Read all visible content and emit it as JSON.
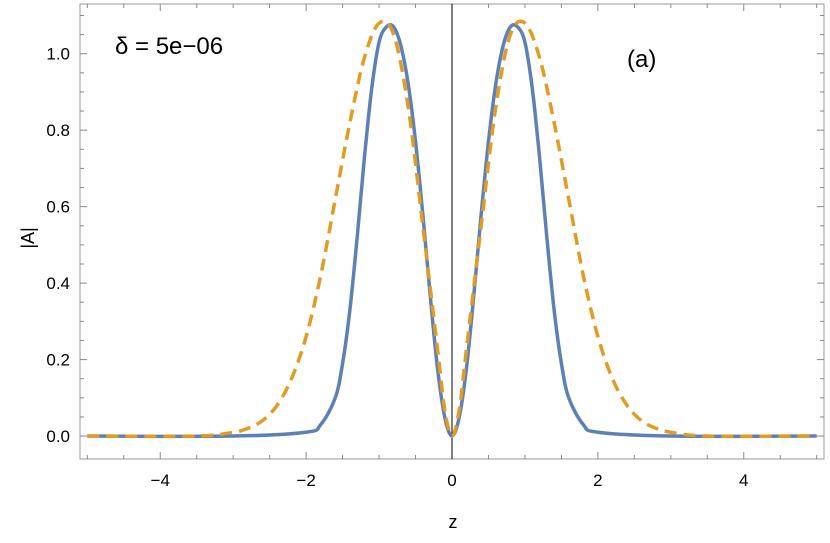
{
  "chart_data": {
    "type": "line",
    "xlabel": "z",
    "ylabel": "|A|",
    "xlim": [
      -5.1,
      5.1
    ],
    "ylim": [
      -0.06,
      1.13
    ],
    "xticks": [
      -4,
      -2,
      0,
      2,
      4
    ],
    "xtick_labels": [
      "−4",
      "−2",
      "0",
      "2",
      "4"
    ],
    "yticks": [
      0.0,
      0.2,
      0.4,
      0.6,
      0.8,
      1.0
    ],
    "ytick_labels": [
      "0.0",
      "0.2",
      "0.4",
      "0.6",
      "0.8",
      "1.0"
    ],
    "grid": false,
    "frame": true,
    "vertical_line_at_x": 0,
    "annotations": {
      "delta_label": "δ = 5e−06",
      "panel_label": "(a)"
    },
    "series": [
      {
        "style": "solid",
        "color": "#5E81B5",
        "x": [
          -5.0,
          -3.0,
          -2.0,
          -1.8,
          -1.6,
          -1.5,
          -1.4,
          -1.3,
          -1.2,
          -1.1,
          -1.0,
          -0.9,
          -0.8,
          -0.7,
          -0.6,
          -0.5,
          -0.4,
          -0.3,
          -0.2,
          -0.1,
          0.0,
          0.1,
          0.2,
          0.3,
          0.4,
          0.5,
          0.6,
          0.7,
          0.8,
          0.9,
          1.0,
          1.1,
          1.2,
          1.3,
          1.4,
          1.5,
          1.6,
          1.8,
          2.0,
          3.0,
          5.0
        ],
        "y": [
          0.0,
          0.0,
          0.01,
          0.03,
          0.1,
          0.19,
          0.33,
          0.52,
          0.73,
          0.91,
          1.03,
          1.07,
          1.07,
          1.02,
          0.92,
          0.77,
          0.58,
          0.37,
          0.18,
          0.05,
          0.0,
          0.05,
          0.18,
          0.37,
          0.58,
          0.77,
          0.92,
          1.02,
          1.07,
          1.07,
          1.03,
          0.91,
          0.73,
          0.52,
          0.33,
          0.19,
          0.1,
          0.03,
          0.01,
          0.0,
          0.0
        ]
      },
      {
        "style": "dashed",
        "color": "#E19C24",
        "x": [
          -5.0,
          -3.5,
          -3.0,
          -2.8,
          -2.6,
          -2.4,
          -2.2,
          -2.0,
          -1.8,
          -1.6,
          -1.4,
          -1.2,
          -1.0,
          -0.8,
          -0.6,
          -0.4,
          -0.2,
          -0.1,
          0.0,
          0.1,
          0.2,
          0.4,
          0.6,
          0.8,
          1.0,
          1.2,
          1.4,
          1.6,
          1.8,
          2.0,
          2.2,
          2.4,
          2.6,
          2.8,
          3.0,
          3.5,
          5.0
        ],
        "y": [
          0.0,
          0.0,
          0.01,
          0.02,
          0.04,
          0.08,
          0.15,
          0.26,
          0.42,
          0.62,
          0.82,
          0.99,
          1.08,
          1.05,
          0.86,
          0.55,
          0.23,
          0.07,
          0.0,
          0.07,
          0.23,
          0.55,
          0.86,
          1.05,
          1.08,
          0.99,
          0.82,
          0.62,
          0.42,
          0.26,
          0.15,
          0.08,
          0.04,
          0.02,
          0.01,
          0.0,
          0.0
        ]
      }
    ]
  }
}
